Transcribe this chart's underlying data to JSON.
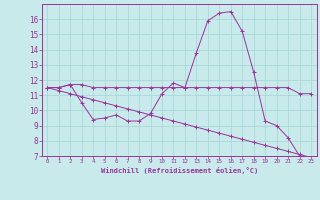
{
  "xlabel": "Windchill (Refroidissement éolien,°C)",
  "bg_color": "#c8eaea",
  "grid_color": "#a8d8d8",
  "line_color": "#993399",
  "xlim": [
    -0.5,
    23.5
  ],
  "ylim": [
    7,
    17
  ],
  "xticks": [
    0,
    1,
    2,
    3,
    4,
    5,
    6,
    7,
    8,
    9,
    10,
    11,
    12,
    13,
    14,
    15,
    16,
    17,
    18,
    19,
    20,
    21,
    22,
    23
  ],
  "yticks": [
    7,
    8,
    9,
    10,
    11,
    12,
    13,
    14,
    15,
    16
  ],
  "line1_x": [
    0,
    1,
    2,
    3,
    4,
    5,
    6,
    7,
    8,
    9,
    10,
    11,
    12,
    13,
    14,
    15,
    16,
    17,
    18,
    19,
    20,
    21,
    22,
    23
  ],
  "line1_y": [
    11.5,
    11.5,
    11.7,
    11.7,
    11.5,
    11.5,
    11.5,
    11.5,
    11.5,
    11.5,
    11.5,
    11.5,
    11.5,
    11.5,
    11.5,
    11.5,
    11.5,
    11.5,
    11.5,
    11.5,
    11.5,
    11.5,
    11.1,
    11.1
  ],
  "line2_x": [
    0,
    1,
    2,
    3,
    4,
    5,
    6,
    7,
    8,
    9,
    10,
    11,
    12,
    13,
    14,
    15,
    16,
    17,
    18,
    19,
    20,
    21,
    22,
    23
  ],
  "line2_y": [
    11.5,
    11.5,
    11.7,
    10.5,
    9.4,
    9.5,
    9.7,
    9.3,
    9.3,
    9.8,
    11.1,
    11.8,
    11.5,
    13.8,
    15.9,
    16.4,
    16.5,
    15.2,
    12.5,
    9.3,
    9.0,
    8.2,
    7.0,
    6.8
  ],
  "line3_x": [
    0,
    1,
    2,
    3,
    4,
    5,
    6,
    7,
    8,
    9,
    10,
    11,
    12,
    13,
    14,
    15,
    16,
    17,
    18,
    19,
    20,
    21,
    22,
    23
  ],
  "line3_y": [
    11.5,
    11.3,
    11.1,
    10.9,
    10.7,
    10.5,
    10.3,
    10.1,
    9.9,
    9.7,
    9.5,
    9.3,
    9.1,
    8.9,
    8.7,
    8.5,
    8.3,
    8.1,
    7.9,
    7.7,
    7.5,
    7.3,
    7.1,
    6.9
  ]
}
